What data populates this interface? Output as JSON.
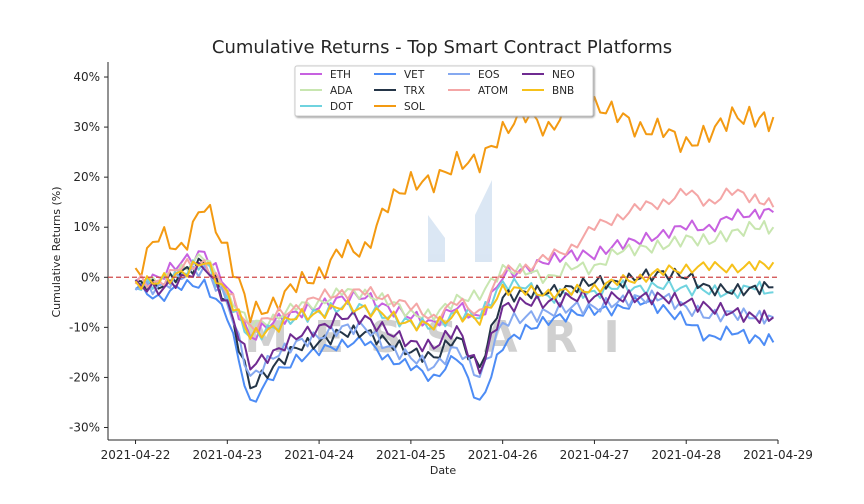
{
  "chart_data": {
    "type": "line",
    "title": "Cumulative Returns - Top Smart Contract Platforms",
    "xlabel": "Date",
    "ylabel": "Cumulative Returns (%)",
    "x_tick_labels": [
      "2021-04-22",
      "2021-04-23",
      "2021-04-24",
      "2021-04-25",
      "2021-04-26",
      "2021-04-27",
      "2021-04-28",
      "2021-04-29"
    ],
    "y_tick_labels": [
      "-30%",
      "-20%",
      "-10%",
      "0%",
      "10%",
      "20%",
      "30%",
      "40%"
    ],
    "x_range_days": [
      -0.3,
      7.0
    ],
    "ylim": [
      -32.5,
      43
    ],
    "y_ticks": [
      -30,
      -20,
      -10,
      0,
      10,
      20,
      30,
      40
    ],
    "reference_line": {
      "y": 0,
      "style": "dashed",
      "color": "#d04a4a"
    },
    "grid": false,
    "legend_position": "top-center",
    "watermark": "MESSARI",
    "sample_days": [
      0,
      0.25,
      0.5,
      0.75,
      1,
      1.25,
      1.5,
      1.75,
      2,
      2.25,
      2.5,
      2.75,
      3,
      3.25,
      3.5,
      3.75,
      4,
      4.25,
      4.5,
      4.75,
      5,
      5.25,
      5.5,
      5.75,
      6,
      6.25,
      6.5,
      6.75,
      6.95
    ],
    "series": [
      {
        "name": "ETH",
        "color": "#c761e0",
        "values": [
          -1,
          0,
          3,
          5,
          -2,
          -12,
          -9,
          -7,
          -6,
          -4,
          -4,
          -6,
          -8,
          -9,
          -6,
          -8,
          0,
          2,
          3,
          5,
          4,
          7,
          7,
          9,
          10,
          10,
          12,
          13,
          13
        ]
      },
      {
        "name": "ADA",
        "color": "#c8e6b0",
        "values": [
          -1,
          -1,
          2,
          4,
          -3,
          -10,
          -8,
          -6,
          -5,
          -3,
          -3,
          -5,
          -7,
          -8,
          -4,
          -4,
          2,
          1,
          0,
          2,
          2,
          5,
          6,
          6,
          8,
          7,
          9,
          10,
          10
        ]
      },
      {
        "name": "DOT",
        "color": "#6fd3df",
        "values": [
          -2,
          -1,
          1,
          3,
          -4,
          -12,
          -10,
          -8,
          -7,
          -6,
          -6,
          -8,
          -9,
          -10,
          -7,
          -8,
          -1,
          -2,
          -4,
          -3,
          -3,
          -2,
          -2,
          -2,
          -2,
          -3,
          -3,
          -2,
          -3
        ]
      },
      {
        "name": "VET",
        "color": "#4d8cf5",
        "values": [
          -2,
          -4,
          -2,
          -1,
          -8,
          -25,
          -20,
          -16,
          -15,
          -13,
          -13,
          -16,
          -18,
          -20,
          -16,
          -25,
          -14,
          -10,
          -9,
          -7,
          -7,
          -6,
          -5,
          -6,
          -9,
          -12,
          -11,
          -12,
          -13
        ]
      },
      {
        "name": "TRX",
        "color": "#243547",
        "values": [
          -1,
          -2,
          1,
          3,
          -5,
          -22,
          -18,
          -14,
          -13,
          -11,
          -11,
          -13,
          -15,
          -16,
          -12,
          -18,
          -4,
          -3,
          -3,
          -2,
          -1,
          -1,
          0,
          1,
          0,
          -2,
          -3,
          -2,
          -2
        ]
      },
      {
        "name": "SOL",
        "color": "#f39a12",
        "values": [
          1,
          8,
          6,
          14,
          6,
          -8,
          -5,
          -2,
          1,
          5,
          6,
          14,
          20,
          18,
          24,
          22,
          30,
          32,
          30,
          34,
          35,
          32,
          30,
          29,
          27,
          28,
          33,
          31,
          32
        ]
      },
      {
        "name": "EOS",
        "color": "#86a9f0",
        "values": [
          -2,
          -2,
          0,
          2,
          -5,
          -20,
          -16,
          -13,
          -12,
          -10,
          -10,
          -14,
          -16,
          -18,
          -14,
          -20,
          -9,
          -8,
          -7,
          -6,
          -6,
          -5,
          -4,
          -4,
          -6,
          -8,
          -7,
          -8,
          -8
        ]
      },
      {
        "name": "ATOM",
        "color": "#f4a6a6",
        "values": [
          -1,
          -1,
          2,
          3,
          -3,
          -10,
          -8,
          -6,
          -4,
          -3,
          -3,
          -4,
          -6,
          -8,
          -5,
          -7,
          1,
          2,
          4,
          6,
          10,
          12,
          14,
          15,
          17,
          15,
          17,
          16,
          14
        ]
      },
      {
        "name": "NEO",
        "color": "#6f2b91",
        "values": [
          -1,
          -3,
          0,
          2,
          -5,
          -18,
          -15,
          -12,
          -10,
          -8,
          -8,
          -11,
          -13,
          -14,
          -10,
          -19,
          -6,
          -5,
          -5,
          -4,
          -4,
          -4,
          -4,
          -4,
          -5,
          -6,
          -7,
          -8,
          -8
        ]
      },
      {
        "name": "BNB",
        "color": "#f6c11a",
        "values": [
          -1,
          -1,
          1,
          3,
          -3,
          -12,
          -10,
          -8,
          -7,
          -6,
          -6,
          -8,
          -9,
          -10,
          -7,
          -9,
          -2,
          -3,
          -3,
          -3,
          -2,
          -1,
          0,
          1,
          2,
          2,
          2,
          2,
          3
        ]
      }
    ],
    "legend_order": [
      "ETH",
      "VET",
      "EOS",
      "NEO",
      "ADA",
      "TRX",
      "ATOM",
      "BNB",
      "DOT",
      "SOL"
    ]
  }
}
